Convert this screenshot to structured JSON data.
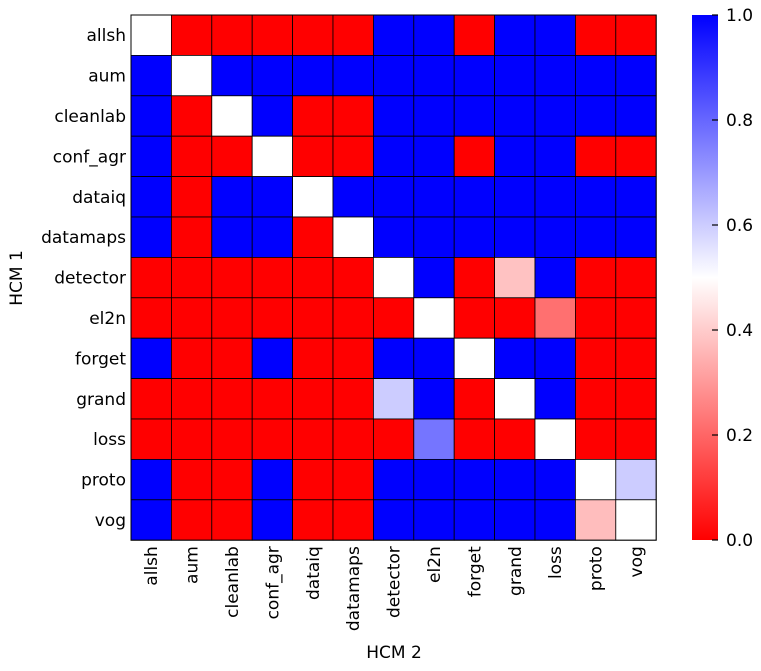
{
  "chart_data": {
    "type": "heatmap",
    "xlabel": "HCM 2",
    "ylabel": "HCM 1",
    "x_categories": [
      "allsh",
      "aum",
      "cleanlab",
      "conf_agr",
      "dataiq",
      "datamaps",
      "detector",
      "el2n",
      "forget",
      "grand",
      "loss",
      "proto",
      "vog"
    ],
    "y_categories": [
      "allsh",
      "aum",
      "cleanlab",
      "conf_agr",
      "dataiq",
      "datamaps",
      "detector",
      "el2n",
      "forget",
      "grand",
      "loss",
      "proto",
      "vog"
    ],
    "values": [
      [
        0.5,
        0,
        0,
        0,
        0,
        0,
        1,
        1,
        0,
        1,
        1,
        0,
        0
      ],
      [
        1,
        0.5,
        1,
        1,
        1,
        1,
        1,
        1,
        1,
        1,
        1,
        1,
        1
      ],
      [
        1,
        0,
        0.5,
        1,
        0,
        0,
        1,
        1,
        1,
        1,
        1,
        1,
        1
      ],
      [
        1,
        0,
        0,
        0.5,
        0,
        0,
        1,
        1,
        0,
        1,
        1,
        0,
        0
      ],
      [
        1,
        0,
        1,
        1,
        0.5,
        1,
        1,
        1,
        1,
        1,
        1,
        1,
        1
      ],
      [
        1,
        0,
        1,
        1,
        0,
        0.5,
        1,
        1,
        1,
        1,
        1,
        1,
        1
      ],
      [
        0,
        0,
        0,
        0,
        0,
        0,
        0.5,
        1,
        0,
        0.38,
        1,
        0,
        0
      ],
      [
        0,
        0,
        0,
        0,
        0,
        0,
        0,
        0.5,
        0,
        0,
        0.22,
        0,
        0
      ],
      [
        1,
        0,
        0,
        1,
        0,
        0,
        1,
        1,
        0.5,
        1,
        1,
        0,
        0
      ],
      [
        0,
        0,
        0,
        0,
        0,
        0,
        0.6,
        1,
        0,
        0.5,
        1,
        0,
        0
      ],
      [
        0,
        0,
        0,
        0,
        0,
        0,
        0,
        0.77,
        0,
        0,
        0.5,
        0,
        0
      ],
      [
        1,
        0,
        0,
        1,
        0,
        0,
        1,
        1,
        1,
        1,
        1,
        0.5,
        0.6
      ],
      [
        1,
        0,
        0,
        1,
        0,
        0,
        1,
        1,
        1,
        1,
        1,
        0.37,
        0.5
      ]
    ],
    "colormap": "bwr_r",
    "vmin": 0.0,
    "vmax": 1.0,
    "colorbar": {
      "ticks": [
        0.0,
        0.2,
        0.4,
        0.6,
        0.8,
        1.0
      ],
      "tick_labels": [
        "0.0",
        "0.2",
        "0.4",
        "0.6",
        "0.8",
        "1.0"
      ]
    },
    "colors": {
      "low": "#ff0000",
      "mid": "#ffffff",
      "high": "#0000ff"
    }
  }
}
